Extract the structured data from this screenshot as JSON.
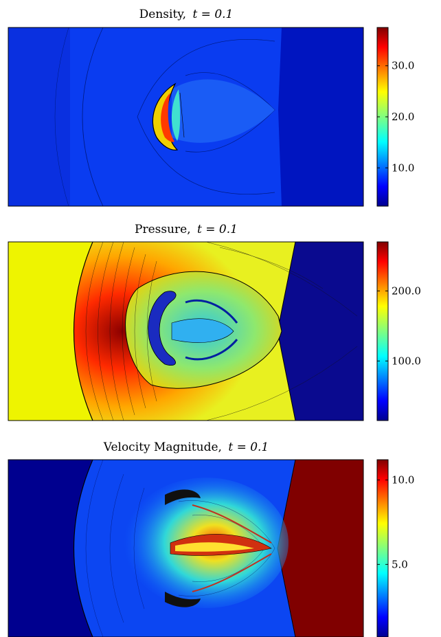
{
  "panels": [
    {
      "title": "Density,",
      "time_label": "t = 0.1",
      "colorbar_ticks": [
        {
          "value": 30.0,
          "label": "30.0"
        },
        {
          "value": 20.0,
          "label": "20.0"
        },
        {
          "value": 10.0,
          "label": "10.0"
        }
      ]
    },
    {
      "title": "Pressure,",
      "time_label": "t = 0.1",
      "colorbar_ticks": [
        {
          "value": 200.0,
          "label": "200.0"
        },
        {
          "value": 100.0,
          "label": "100.0"
        }
      ]
    },
    {
      "title": "Velocity Magnitude,",
      "time_label": "t = 0.1",
      "colorbar_ticks": [
        {
          "value": 10.0,
          "label": "10.0"
        },
        {
          "value": 5.0,
          "label": "5.0"
        }
      ]
    }
  ],
  "chart_data": [
    {
      "type": "heatmap",
      "title": "Density, t = 0.1",
      "quantity": "density",
      "time": 0.1,
      "colormap": "jet",
      "colorbar_range": [
        2.5,
        37.5
      ],
      "colorbar_ticks": [
        10.0,
        20.0,
        30.0
      ]
    },
    {
      "type": "heatmap",
      "title": "Pressure, t = 0.1",
      "quantity": "pressure",
      "time": 0.1,
      "colormap": "jet",
      "colorbar_range": [
        15,
        270
      ],
      "colorbar_ticks": [
        100.0,
        200.0
      ]
    },
    {
      "type": "heatmap",
      "title": "Velocity Magnitude, t = 0.1",
      "quantity": "velocity magnitude",
      "time": 0.1,
      "colormap": "jet",
      "colorbar_range": [
        0.7,
        11.2
      ],
      "colorbar_ticks": [
        5.0,
        10.0
      ]
    }
  ]
}
